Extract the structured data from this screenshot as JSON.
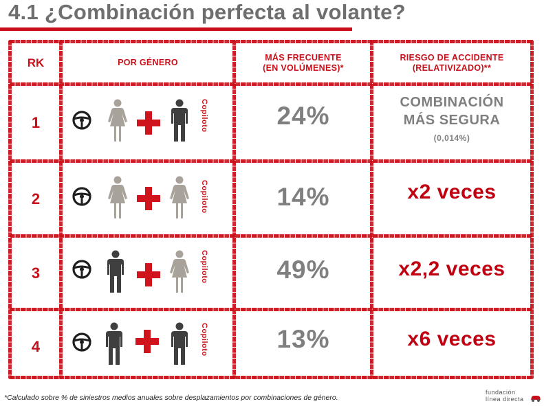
{
  "title": "4.1 ¿Combinación perfecta al volante?",
  "colors": {
    "accent": "#c8101a",
    "gray_text": "#7f7f7f",
    "female_icon": "#a9a29a",
    "male_icon": "#3f3f3f"
  },
  "headers": {
    "rk": "RK",
    "gender": "POR GÉNERO",
    "freq_line1": "MÁS FRECUENTE",
    "freq_line2": "(EN VOLÚMENES)*",
    "risk_line1": "RIESGO  DE ACCIDENTE",
    "risk_line2": "(RELATIVIZADO)**"
  },
  "rows": [
    {
      "rank": "1",
      "driver": "female",
      "copilot": "male",
      "copilot_label": "Copiloto",
      "percent": "24%",
      "risk_line1": "COMBINACIÓN",
      "risk_line2": "MÁS SEGURA",
      "risk_sub": "(0,014%)"
    },
    {
      "rank": "2",
      "driver": "female",
      "copilot": "female",
      "copilot_label": "Copiloto",
      "percent": "14%",
      "risk": "x2 veces"
    },
    {
      "rank": "3",
      "driver": "male",
      "copilot": "female",
      "copilot_label": "Copiloto",
      "percent": "49%",
      "risk": "x2,2 veces"
    },
    {
      "rank": "4",
      "driver": "male",
      "copilot": "male",
      "copilot_label": "Copiloto",
      "percent": "13%",
      "risk": "x6 veces"
    }
  ],
  "icons": {
    "steering": "steering-wheel-icon",
    "plus": "plus-icon",
    "female": "female-person-icon",
    "male": "male-person-icon"
  },
  "footnote": "*Calculado sobre % de siniestros medios anuales sobre desplazamientos por combinaciones de género.",
  "logo": {
    "line1": "fundación",
    "line2": "línea directa"
  }
}
